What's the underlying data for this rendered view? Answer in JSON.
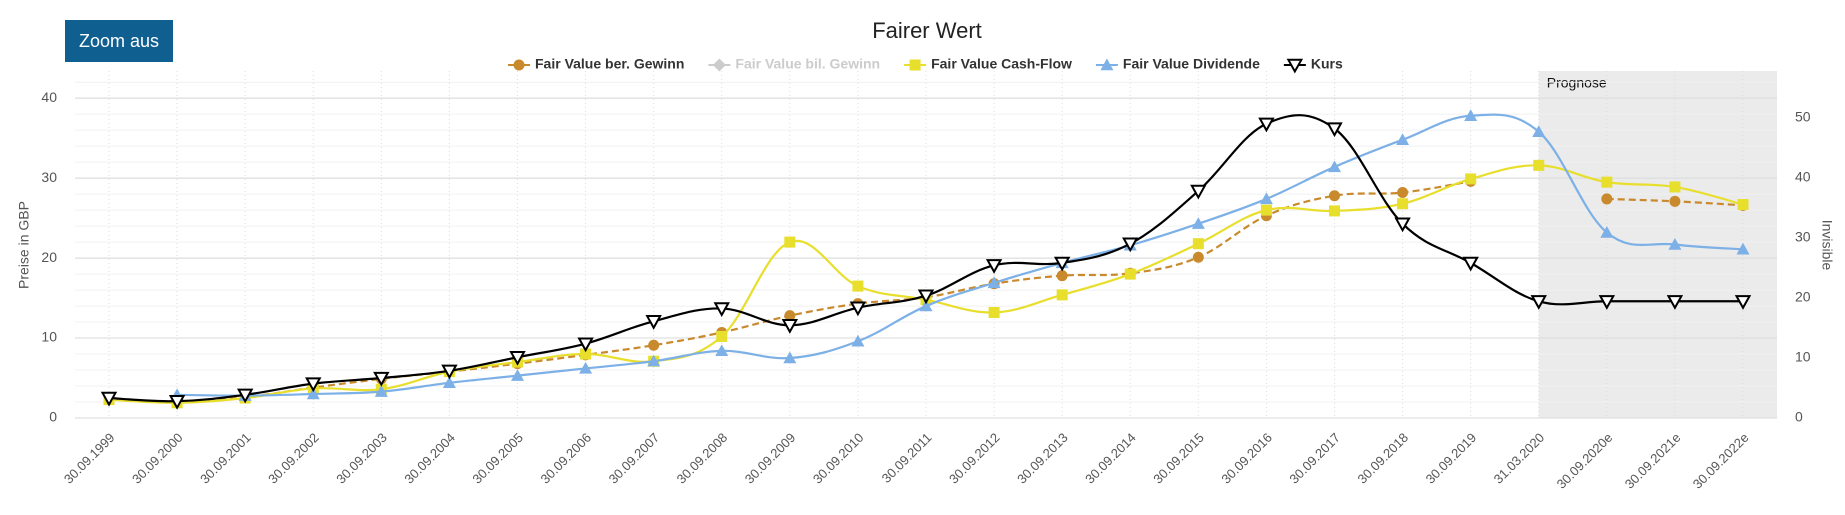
{
  "button": {
    "label": "Zoom aus"
  },
  "chart_data": {
    "type": "line",
    "title": "Fairer Wert",
    "y_label": "Preise in GBP",
    "y2_label": "Invisible",
    "annotation": "Prognose",
    "forecast_start": "31.03.2020",
    "categories": [
      "30.09.1999",
      "30.09.2000",
      "30.09.2001",
      "30.09.2002",
      "30.09.2003",
      "30.09.2004",
      "30.09.2005",
      "30.09.2006",
      "30.09.2007",
      "30.09.2008",
      "30.09.2009",
      "30.09.2010",
      "30.09.2011",
      "30.09.2012",
      "30.09.2013",
      "30.09.2014",
      "30.09.2015",
      "30.09.2016",
      "30.09.2017",
      "30.09.2018",
      "30.09.2019",
      "31.03.2020",
      "30.09.2020e",
      "30.09.2021e",
      "30.09.2022e"
    ],
    "ylim": [
      0,
      43.4
    ],
    "yticks": [
      0,
      10,
      20,
      30,
      40
    ],
    "y2lim": [
      0,
      57.8
    ],
    "y2ticks": [
      0,
      10,
      20,
      30,
      40,
      50
    ],
    "grid": true,
    "legend": "top",
    "series": [
      {
        "name": "Fair Value ber. Gewinn",
        "color": "#c98a2e",
        "marker": "circle",
        "dash": true,
        "visible": true,
        "values": [
          2.4,
          2.0,
          2.6,
          3.8,
          4.9,
          5.8,
          6.8,
          7.9,
          9.1,
          10.7,
          12.8,
          14.3,
          15.1,
          16.8,
          17.8,
          18.1,
          20.1,
          25.3,
          27.8,
          28.2,
          29.6,
          null,
          27.4,
          27.1,
          26.6
        ]
      },
      {
        "name": "Fair Value bil. Gewinn",
        "color": "#cccccc",
        "marker": "diamond",
        "dash": false,
        "visible": false,
        "values": [
          null,
          null,
          null,
          null,
          null,
          null,
          null,
          null,
          null,
          null,
          null,
          null,
          null,
          null,
          null,
          null,
          null,
          null,
          null,
          null,
          null,
          null,
          null,
          null,
          null
        ]
      },
      {
        "name": "Fair Value Cash-Flow",
        "color": "#e8de2c",
        "marker": "square",
        "dash": false,
        "visible": true,
        "values": [
          2.3,
          1.9,
          2.5,
          3.7,
          3.6,
          5.8,
          7.0,
          8.0,
          7.1,
          10.2,
          22.0,
          16.5,
          14.8,
          13.2,
          15.4,
          18.0,
          21.8,
          26.0,
          25.9,
          26.8,
          29.9,
          31.6,
          29.5,
          28.9,
          26.7
        ]
      },
      {
        "name": "Fair Value Dividende",
        "color": "#7cb0e6",
        "marker": "triangle",
        "dash": false,
        "visible": true,
        "values": [
          null,
          2.9,
          2.8,
          3.0,
          3.3,
          4.4,
          5.3,
          6.2,
          7.1,
          8.4,
          7.5,
          9.6,
          14.0,
          16.9,
          19.4,
          21.6,
          24.3,
          27.4,
          31.4,
          34.8,
          37.8,
          35.8,
          23.2,
          21.7,
          21.1
        ]
      },
      {
        "name": "Kurs",
        "color": "#000000",
        "marker": "triangle-down",
        "dash": false,
        "visible": true,
        "values": [
          2.5,
          2.1,
          2.9,
          4.3,
          5.0,
          5.9,
          7.6,
          9.3,
          12.1,
          13.7,
          11.6,
          13.8,
          15.3,
          19.1,
          19.4,
          21.8,
          28.4,
          36.8,
          36.2,
          24.3,
          19.4,
          14.6,
          14.6,
          14.6,
          14.6
        ]
      }
    ]
  }
}
